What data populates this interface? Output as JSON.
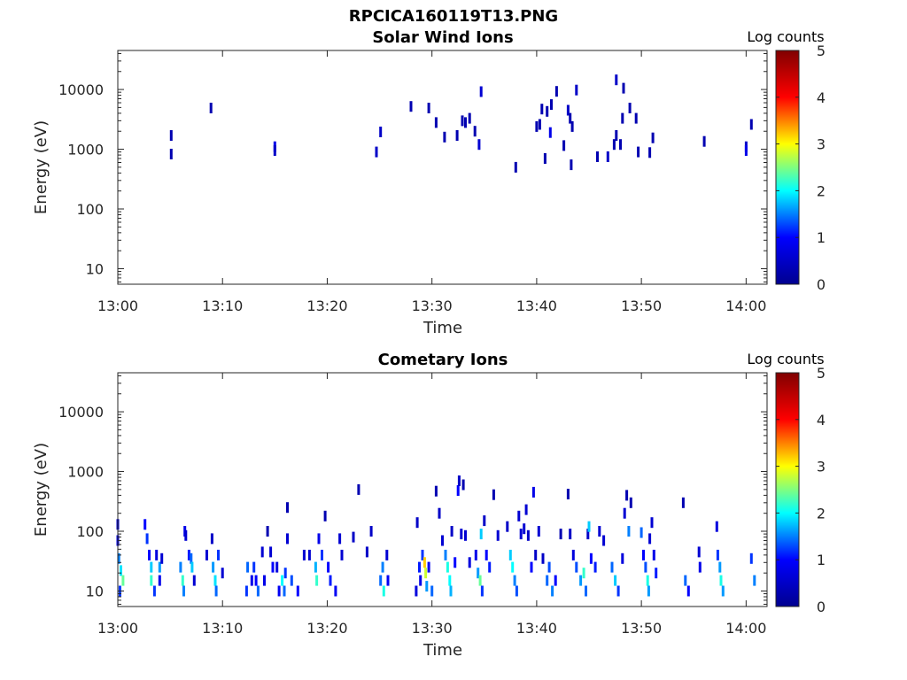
{
  "figure": {
    "title": "RPCICA160119T13.PNG"
  },
  "colormap": {
    "name": "jet",
    "stops": [
      "#00008f",
      "#0000ff",
      "#00ffff",
      "#ffff00",
      "#ff0000",
      "#800000"
    ]
  },
  "chart_data": [
    {
      "type": "heatmap",
      "title": "Solar Wind Ions",
      "xlabel": "Time",
      "ylabel": "Energy (eV)",
      "xlim_minutes": [
        0,
        62
      ],
      "ylim": [
        5.5,
        45000
      ],
      "yscale": "log",
      "x_ticks": [
        "13:00",
        "13:10",
        "13:20",
        "13:30",
        "13:40",
        "13:50",
        "14:00"
      ],
      "y_ticks": [
        "10",
        "100",
        "1000",
        "10000"
      ],
      "colorbar": {
        "label": "Log counts",
        "range": [
          0,
          5
        ],
        "ticks": [
          "0",
          "1",
          "2",
          "3",
          "4",
          "5"
        ]
      },
      "grid": false,
      "cells": [
        [
          5.1,
          1700,
          0.3
        ],
        [
          5.1,
          830,
          0.3
        ],
        [
          8.9,
          4900,
          0.3
        ],
        [
          15.0,
          1100,
          0.8
        ],
        [
          15.0,
          950,
          0.5
        ],
        [
          24.7,
          900,
          0.5
        ],
        [
          25.1,
          1950,
          0.5
        ],
        [
          28.0,
          5200,
          0.3
        ],
        [
          29.7,
          4900,
          0.3
        ],
        [
          30.4,
          2800,
          0.3
        ],
        [
          31.2,
          1600,
          0.3
        ],
        [
          32.4,
          1700,
          0.3
        ],
        [
          32.9,
          3000,
          0.3
        ],
        [
          33.2,
          2800,
          0.3
        ],
        [
          33.6,
          3300,
          0.3
        ],
        [
          34.1,
          2000,
          0.3
        ],
        [
          34.5,
          1200,
          0.6
        ],
        [
          34.7,
          9200,
          0.6
        ],
        [
          38.0,
          500,
          0.3
        ],
        [
          40.0,
          2400,
          0.3
        ],
        [
          40.3,
          2600,
          0.3
        ],
        [
          40.5,
          4700,
          0.3
        ],
        [
          40.8,
          700,
          0.3
        ],
        [
          41.0,
          4300,
          0.3
        ],
        [
          41.3,
          1900,
          0.8
        ],
        [
          41.4,
          5600,
          0.3
        ],
        [
          41.9,
          9300,
          0.3
        ],
        [
          42.6,
          1150,
          0.3
        ],
        [
          43.0,
          4500,
          0.5
        ],
        [
          43.2,
          3300,
          0.3
        ],
        [
          43.3,
          550,
          0.3
        ],
        [
          43.4,
          2400,
          0.3
        ],
        [
          43.8,
          9800,
          0.5
        ],
        [
          45.8,
          750,
          0.3
        ],
        [
          46.8,
          750,
          0.5
        ],
        [
          47.4,
          1200,
          0.3
        ],
        [
          47.6,
          1700,
          0.3
        ],
        [
          47.6,
          14500,
          0.5
        ],
        [
          48.0,
          1200,
          0.3
        ],
        [
          48.2,
          3300,
          0.3
        ],
        [
          48.3,
          10500,
          0.3
        ],
        [
          48.9,
          4900,
          0.3
        ],
        [
          49.5,
          3300,
          0.3
        ],
        [
          49.7,
          900,
          0.3
        ],
        [
          50.8,
          880,
          0.3
        ],
        [
          51.1,
          1550,
          0.3
        ],
        [
          56.0,
          1350,
          0.3
        ],
        [
          60.0,
          1100,
          0.5
        ],
        [
          60.0,
          950,
          0.8
        ],
        [
          60.5,
          2600,
          0.3
        ]
      ]
    },
    {
      "type": "heatmap",
      "title": "Cometary Ions",
      "xlabel": "Time",
      "ylabel": "Energy (eV)",
      "xlim_minutes": [
        0,
        62
      ],
      "ylim": [
        5.5,
        45000
      ],
      "yscale": "log",
      "x_ticks": [
        "13:00",
        "13:10",
        "13:20",
        "13:30",
        "13:40",
        "13:50",
        "14:00"
      ],
      "y_ticks": [
        "10",
        "100",
        "1000",
        "10000"
      ],
      "colorbar": {
        "label": "Log counts",
        "range": [
          0,
          5
        ],
        "ticks": [
          "0",
          "1",
          "2",
          "3",
          "4",
          "5"
        ]
      },
      "grid": false,
      "cells": [
        [
          0.0,
          130,
          0.6
        ],
        [
          0.0,
          70,
          0.8
        ],
        [
          0.1,
          35,
          1.5
        ],
        [
          0.3,
          22,
          1.9
        ],
        [
          0.5,
          15,
          2.4
        ],
        [
          0.2,
          10,
          1.2
        ],
        [
          2.6,
          130,
          1.0
        ],
        [
          2.8,
          75,
          1.2
        ],
        [
          3.0,
          40,
          1.0
        ],
        [
          3.2,
          25,
          1.8
        ],
        [
          3.2,
          15,
          2.2
        ],
        [
          3.5,
          10,
          1.2
        ],
        [
          3.7,
          40,
          0.7
        ],
        [
          4.0,
          25,
          1.6
        ],
        [
          4.0,
          15,
          0.8
        ],
        [
          4.2,
          35,
          0.6
        ],
        [
          6.0,
          25,
          1.5
        ],
        [
          6.2,
          15,
          2.2
        ],
        [
          6.3,
          10,
          1.5
        ],
        [
          6.4,
          100,
          0.8
        ],
        [
          6.5,
          85,
          0.6
        ],
        [
          6.8,
          40,
          1.1
        ],
        [
          7.0,
          35,
          1.4
        ],
        [
          7.1,
          25,
          1.8
        ],
        [
          7.3,
          15,
          0.6
        ],
        [
          8.5,
          40,
          0.6
        ],
        [
          9.0,
          75,
          0.5
        ],
        [
          9.1,
          25,
          1.6
        ],
        [
          9.3,
          15,
          1.9
        ],
        [
          9.4,
          10,
          1.4
        ],
        [
          9.6,
          40,
          1.2
        ],
        [
          10.0,
          20,
          0.6
        ],
        [
          12.3,
          10,
          1.2
        ],
        [
          12.4,
          25,
          1.4
        ],
        [
          12.8,
          15,
          0.8
        ],
        [
          13.0,
          25,
          1.2
        ],
        [
          13.2,
          15,
          1.0
        ],
        [
          13.4,
          10,
          1.4
        ],
        [
          13.8,
          45,
          0.6
        ],
        [
          14.0,
          15,
          0.8
        ],
        [
          14.3,
          100,
          0.3
        ],
        [
          14.6,
          45,
          0.6
        ],
        [
          14.8,
          25,
          1.0
        ],
        [
          15.2,
          25,
          0.7
        ],
        [
          15.4,
          10,
          0.9
        ],
        [
          15.7,
          15,
          2.0
        ],
        [
          15.9,
          10,
          1.4
        ],
        [
          16.0,
          20,
          1.2
        ],
        [
          16.2,
          75,
          0.6
        ],
        [
          16.2,
          250,
          0.3
        ],
        [
          16.6,
          15,
          1.3
        ],
        [
          17.2,
          10,
          1.0
        ],
        [
          17.8,
          40,
          0.6
        ],
        [
          18.3,
          40,
          0.6
        ],
        [
          18.9,
          25,
          1.7
        ],
        [
          19.0,
          15,
          2.2
        ],
        [
          19.2,
          75,
          0.8
        ],
        [
          19.5,
          40,
          1.2
        ],
        [
          19.8,
          180,
          0.3
        ],
        [
          20.1,
          25,
          1.0
        ],
        [
          20.3,
          15,
          1.1
        ],
        [
          20.8,
          10,
          0.9
        ],
        [
          21.2,
          75,
          0.6
        ],
        [
          21.4,
          40,
          0.6
        ],
        [
          22.5,
          80,
          0.5
        ],
        [
          23.0,
          500,
          0.3
        ],
        [
          23.8,
          45,
          0.5
        ],
        [
          24.2,
          100,
          0.5
        ],
        [
          25.1,
          15,
          1.4
        ],
        [
          25.3,
          25,
          1.5
        ],
        [
          25.4,
          10,
          2.1
        ],
        [
          25.7,
          40,
          0.6
        ],
        [
          25.8,
          15,
          0.9
        ],
        [
          28.5,
          10,
          0.7
        ],
        [
          28.6,
          140,
          0.5
        ],
        [
          28.8,
          25,
          1.1
        ],
        [
          28.9,
          15,
          0.8
        ],
        [
          29.1,
          40,
          1.2
        ],
        [
          29.3,
          30,
          3.2
        ],
        [
          29.4,
          20,
          2.8
        ],
        [
          29.5,
          12,
          1.6
        ],
        [
          29.7,
          25,
          0.9
        ],
        [
          30.0,
          10,
          1.4
        ],
        [
          30.4,
          470,
          0.3
        ],
        [
          30.7,
          200,
          0.5
        ],
        [
          31.0,
          70,
          0.6
        ],
        [
          31.3,
          40,
          1.5
        ],
        [
          31.5,
          25,
          2.1
        ],
        [
          31.7,
          15,
          2.0
        ],
        [
          31.8,
          10,
          1.7
        ],
        [
          31.9,
          100,
          0.5
        ],
        [
          32.2,
          30,
          1.0
        ],
        [
          32.5,
          480,
          1.0
        ],
        [
          32.6,
          700,
          0.5
        ],
        [
          32.8,
          90,
          0.6
        ],
        [
          33.0,
          600,
          0.3
        ],
        [
          33.2,
          85,
          0.6
        ],
        [
          33.6,
          30,
          0.7
        ],
        [
          34.2,
          40,
          0.8
        ],
        [
          34.4,
          20,
          1.6
        ],
        [
          34.6,
          15,
          2.4
        ],
        [
          34.7,
          90,
          1.8
        ],
        [
          34.8,
          10,
          1.2
        ],
        [
          35.0,
          150,
          0.5
        ],
        [
          35.2,
          40,
          1.0
        ],
        [
          35.5,
          25,
          1.1
        ],
        [
          35.9,
          410,
          0.3
        ],
        [
          36.3,
          85,
          0.6
        ],
        [
          37.2,
          120,
          0.5
        ],
        [
          37.5,
          40,
          1.8
        ],
        [
          37.7,
          25,
          2.0
        ],
        [
          37.9,
          15,
          1.5
        ],
        [
          38.1,
          10,
          1.3
        ],
        [
          38.3,
          180,
          0.6
        ],
        [
          38.5,
          90,
          0.6
        ],
        [
          38.8,
          110,
          0.6
        ],
        [
          39.0,
          230,
          0.6
        ],
        [
          39.2,
          85,
          0.5
        ],
        [
          39.5,
          25,
          1.0
        ],
        [
          39.7,
          450,
          0.8
        ],
        [
          39.9,
          40,
          0.5
        ],
        [
          40.2,
          100,
          0.6
        ],
        [
          40.6,
          35,
          0.5
        ],
        [
          41.0,
          15,
          1.4
        ],
        [
          41.2,
          25,
          1.3
        ],
        [
          41.5,
          10,
          1.5
        ],
        [
          41.8,
          15,
          1.0
        ],
        [
          42.3,
          90,
          0.3
        ],
        [
          43.0,
          420,
          0.3
        ],
        [
          43.2,
          90,
          0.5
        ],
        [
          43.5,
          40,
          0.7
        ],
        [
          43.8,
          25,
          1.3
        ],
        [
          44.2,
          15,
          1.6
        ],
        [
          44.5,
          20,
          2.2
        ],
        [
          44.7,
          10,
          1.4
        ],
        [
          44.9,
          90,
          0.5
        ],
        [
          45.0,
          120,
          1.8
        ],
        [
          45.2,
          35,
          1.0
        ],
        [
          45.6,
          25,
          1.1
        ],
        [
          46.0,
          100,
          0.6
        ],
        [
          46.4,
          70,
          0.6
        ],
        [
          47.2,
          25,
          1.4
        ],
        [
          47.5,
          15,
          1.8
        ],
        [
          47.8,
          10,
          1.2
        ],
        [
          48.2,
          35,
          0.7
        ],
        [
          48.4,
          200,
          0.6
        ],
        [
          48.6,
          400,
          0.3
        ],
        [
          48.8,
          100,
          1.5
        ],
        [
          49.0,
          300,
          0.3
        ],
        [
          50.0,
          95,
          1.4
        ],
        [
          50.2,
          40,
          1.0
        ],
        [
          50.4,
          25,
          1.3
        ],
        [
          50.6,
          15,
          2.1
        ],
        [
          50.7,
          10,
          1.6
        ],
        [
          50.8,
          75,
          0.6
        ],
        [
          51.0,
          140,
          0.6
        ],
        [
          51.2,
          40,
          0.8
        ],
        [
          51.4,
          20,
          1.1
        ],
        [
          54.0,
          300,
          0.3
        ],
        [
          54.2,
          15,
          1.4
        ],
        [
          54.5,
          10,
          1.0
        ],
        [
          55.5,
          45,
          0.6
        ],
        [
          55.6,
          25,
          0.8
        ],
        [
          57.2,
          120,
          0.7
        ],
        [
          57.3,
          40,
          1.2
        ],
        [
          57.5,
          25,
          1.6
        ],
        [
          57.6,
          15,
          2.1
        ],
        [
          57.8,
          10,
          1.6
        ],
        [
          60.5,
          35,
          1.2
        ],
        [
          60.8,
          15,
          1.5
        ]
      ]
    }
  ]
}
